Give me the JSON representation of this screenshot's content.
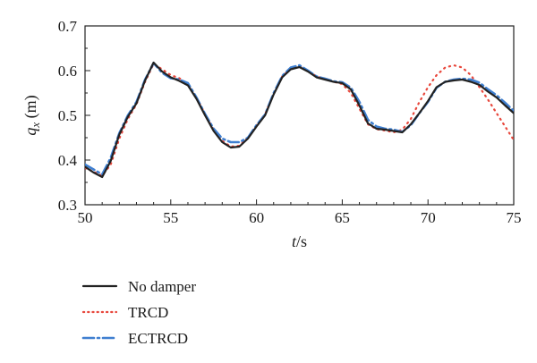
{
  "chart_data": {
    "type": "line",
    "xlabel_var": "t",
    "xlabel_unit": "/s",
    "ylabel_var": "q",
    "ylabel_sub": "x",
    "ylabel_unit": " (m)",
    "xlim": [
      50,
      75
    ],
    "ylim": [
      0.3,
      0.7
    ],
    "xticks": [
      "50",
      "55",
      "60",
      "65",
      "70",
      "75"
    ],
    "yticks": [
      "0.3",
      "0.4",
      "0.5",
      "0.6",
      "0.7"
    ],
    "grid": false,
    "legend_position": "bottom-left, below plot",
    "series": [
      {
        "name": "No damper",
        "color": "#222222",
        "style": "solid",
        "x": [
          50,
          50.5,
          51,
          51.5,
          52,
          52.5,
          53,
          53.5,
          54,
          54.5,
          55,
          55.5,
          56,
          56.5,
          57,
          57.5,
          58,
          58.5,
          59,
          59.5,
          60,
          60.5,
          61,
          61.5,
          62,
          62.5,
          63,
          63.5,
          64,
          64.5,
          65,
          65.5,
          66,
          66.5,
          67,
          67.5,
          68,
          68.5,
          69,
          69.5,
          70,
          70.5,
          71,
          71.5,
          72,
          72.5,
          73,
          73.5,
          74,
          74.5,
          75
        ],
        "y": [
          0.385,
          0.372,
          0.362,
          0.398,
          0.457,
          0.497,
          0.527,
          0.578,
          0.618,
          0.598,
          0.585,
          0.577,
          0.567,
          0.537,
          0.5,
          0.465,
          0.44,
          0.428,
          0.43,
          0.448,
          0.475,
          0.5,
          0.547,
          0.585,
          0.603,
          0.608,
          0.598,
          0.585,
          0.58,
          0.575,
          0.572,
          0.558,
          0.522,
          0.482,
          0.47,
          0.468,
          0.465,
          0.462,
          0.48,
          0.505,
          0.532,
          0.563,
          0.575,
          0.578,
          0.58,
          0.575,
          0.568,
          0.553,
          0.54,
          0.522,
          0.505
        ]
      },
      {
        "name": "TRCD",
        "color": "#e8473c",
        "style": "dotted",
        "x": [
          50,
          50.5,
          51,
          51.5,
          52,
          52.5,
          53,
          53.5,
          54,
          54.5,
          55,
          55.5,
          56,
          56.5,
          57,
          57.5,
          58,
          58.5,
          59,
          59.5,
          60,
          60.5,
          61,
          61.5,
          62,
          62.5,
          63,
          63.5,
          64,
          64.5,
          65,
          65.5,
          66,
          66.5,
          67,
          67.5,
          68,
          68.5,
          69,
          69.5,
          70,
          70.5,
          71,
          71.5,
          72,
          72.5,
          73,
          73.5,
          74,
          74.5,
          75
        ],
        "y": [
          0.382,
          0.374,
          0.365,
          0.39,
          0.448,
          0.492,
          0.525,
          0.575,
          0.615,
          0.603,
          0.59,
          0.583,
          0.57,
          0.54,
          0.503,
          0.468,
          0.443,
          0.43,
          0.432,
          0.45,
          0.478,
          0.503,
          0.548,
          0.587,
          0.605,
          0.61,
          0.6,
          0.587,
          0.582,
          0.575,
          0.57,
          0.55,
          0.515,
          0.48,
          0.469,
          0.466,
          0.462,
          0.468,
          0.492,
          0.53,
          0.563,
          0.59,
          0.607,
          0.612,
          0.607,
          0.59,
          0.563,
          0.535,
          0.505,
          0.475,
          0.445
        ]
      },
      {
        "name": "ECTRCD",
        "color": "#3f7fd0",
        "style": "dashdot",
        "x": [
          50,
          50.5,
          51,
          51.5,
          52,
          52.5,
          53,
          53.5,
          54,
          54.5,
          55,
          55.5,
          56,
          56.5,
          57,
          57.5,
          58,
          58.5,
          59,
          59.5,
          60,
          60.5,
          61,
          61.5,
          62,
          62.5,
          63,
          63.5,
          64,
          64.5,
          65,
          65.5,
          66,
          66.5,
          67,
          67.5,
          68,
          68.5,
          69,
          69.5,
          70,
          70.5,
          71,
          71.5,
          72,
          72.5,
          73,
          73.5,
          74,
          74.5,
          75
        ],
        "y": [
          0.39,
          0.379,
          0.368,
          0.405,
          0.46,
          0.5,
          0.53,
          0.58,
          0.617,
          0.595,
          0.583,
          0.58,
          0.572,
          0.54,
          0.503,
          0.47,
          0.448,
          0.44,
          0.44,
          0.45,
          0.478,
          0.502,
          0.55,
          0.588,
          0.607,
          0.612,
          0.6,
          0.587,
          0.582,
          0.576,
          0.574,
          0.562,
          0.53,
          0.49,
          0.475,
          0.47,
          0.468,
          0.463,
          0.478,
          0.505,
          0.53,
          0.562,
          0.575,
          0.58,
          0.582,
          0.58,
          0.573,
          0.558,
          0.545,
          0.528,
          0.51
        ]
      }
    ]
  }
}
